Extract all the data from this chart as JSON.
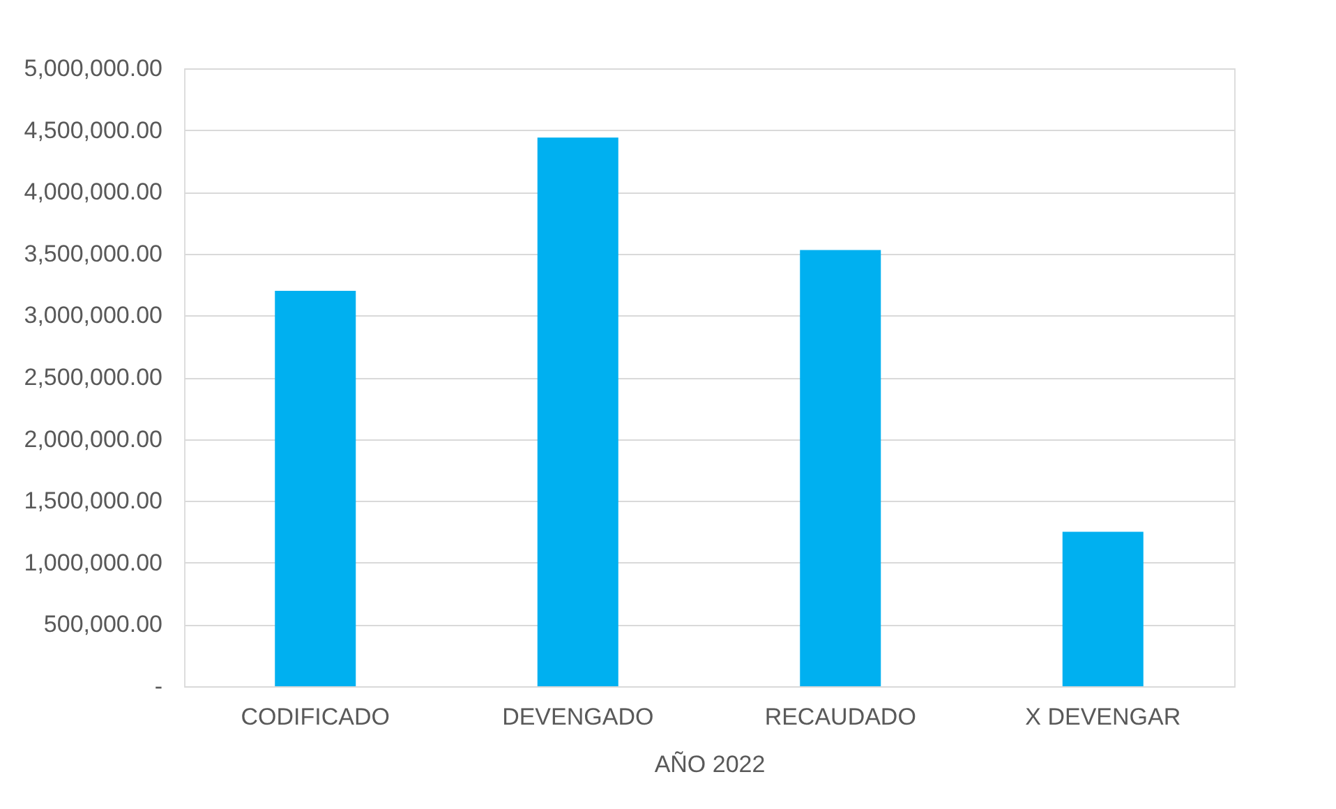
{
  "chart_data": {
    "type": "bar",
    "categories": [
      "CODIFICADO",
      "DEVENGADO",
      "RECAUDADO",
      "X DEVENGAR"
    ],
    "xlabel": "AÑO 2022",
    "values": [
      3200000,
      4440000,
      3530000,
      1250000
    ],
    "color": "#00b0f0",
    "ylim": [
      0,
      5000000
    ],
    "yticks": [
      {
        "value": 0,
        "label": "-"
      },
      {
        "value": 500000,
        "label": "500,000.00"
      },
      {
        "value": 1000000,
        "label": "1,000,000.00"
      },
      {
        "value": 1500000,
        "label": "1,500,000.00"
      },
      {
        "value": 2000000,
        "label": "2,000,000.00"
      },
      {
        "value": 2500000,
        "label": "2,500,000.00"
      },
      {
        "value": 3000000,
        "label": "3,000,000.00"
      },
      {
        "value": 3500000,
        "label": "3,500,000.00"
      },
      {
        "value": 4000000,
        "label": "4,000,000.00"
      },
      {
        "value": 4500000,
        "label": "4,500,000.00"
      },
      {
        "value": 5000000,
        "label": "5,000,000.00"
      }
    ],
    "grid": "y"
  }
}
